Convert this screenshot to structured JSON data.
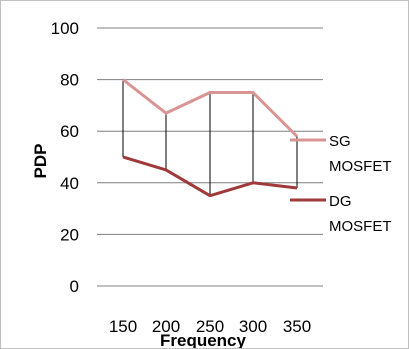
{
  "chart_data": {
    "type": "line",
    "xlabel": "Frequency",
    "ylabel": "PDP",
    "ylim": [
      0,
      100
    ],
    "yticks": [
      "0",
      "20",
      "40",
      "60",
      "80",
      "100"
    ],
    "categories": [
      "150",
      "200",
      "250",
      "300",
      "350"
    ],
    "grid": true,
    "legend_position": "right",
    "drop_lines": true,
    "series": [
      {
        "name_lines": [
          "SG",
          "MOSFET"
        ],
        "values": [
          80,
          67,
          75,
          75,
          58
        ],
        "color": "#d99594"
      },
      {
        "name_lines": [
          "DG",
          "MOSFET"
        ],
        "values": [
          50,
          45,
          35,
          40,
          38
        ],
        "color": "#a0393a"
      }
    ]
  }
}
